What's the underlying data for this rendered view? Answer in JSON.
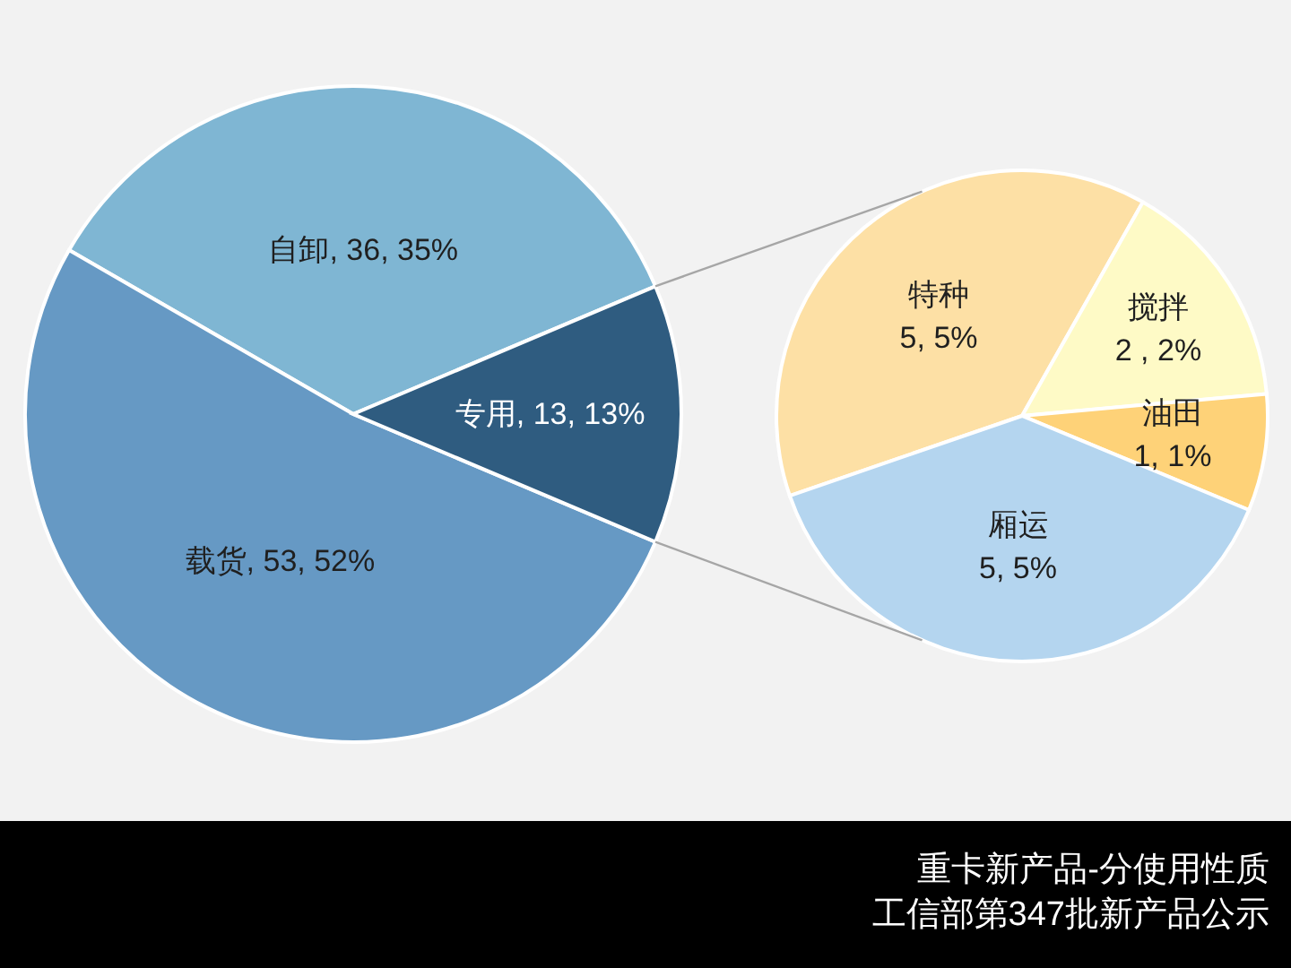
{
  "chart_data": [
    {
      "type": "pie",
      "categories": [
        "自卸",
        "载货",
        "专用"
      ],
      "values": [
        36,
        53,
        13
      ],
      "colors": [
        "#7fb6d3",
        "#6699c4",
        "#2f5c80"
      ],
      "value_labels": [
        "36, 35%",
        "53, 52%",
        "13, 13%"
      ],
      "annotations": [
        "重卡新产品-分使用性质",
        "工信部第347批新产品公示"
      ]
    },
    {
      "type": "pie",
      "categories": [
        "特种",
        "搅拌",
        "油田",
        "厢运"
      ],
      "values": [
        5,
        2,
        1,
        5
      ],
      "colors": [
        "#fde0a5",
        "#fefac6",
        "#fed278",
        "#b4d5ef"
      ],
      "value_labels": [
        "5, 5%",
        "2 , 2%",
        "1, 1%",
        "5, 5%"
      ]
    }
  ]
}
